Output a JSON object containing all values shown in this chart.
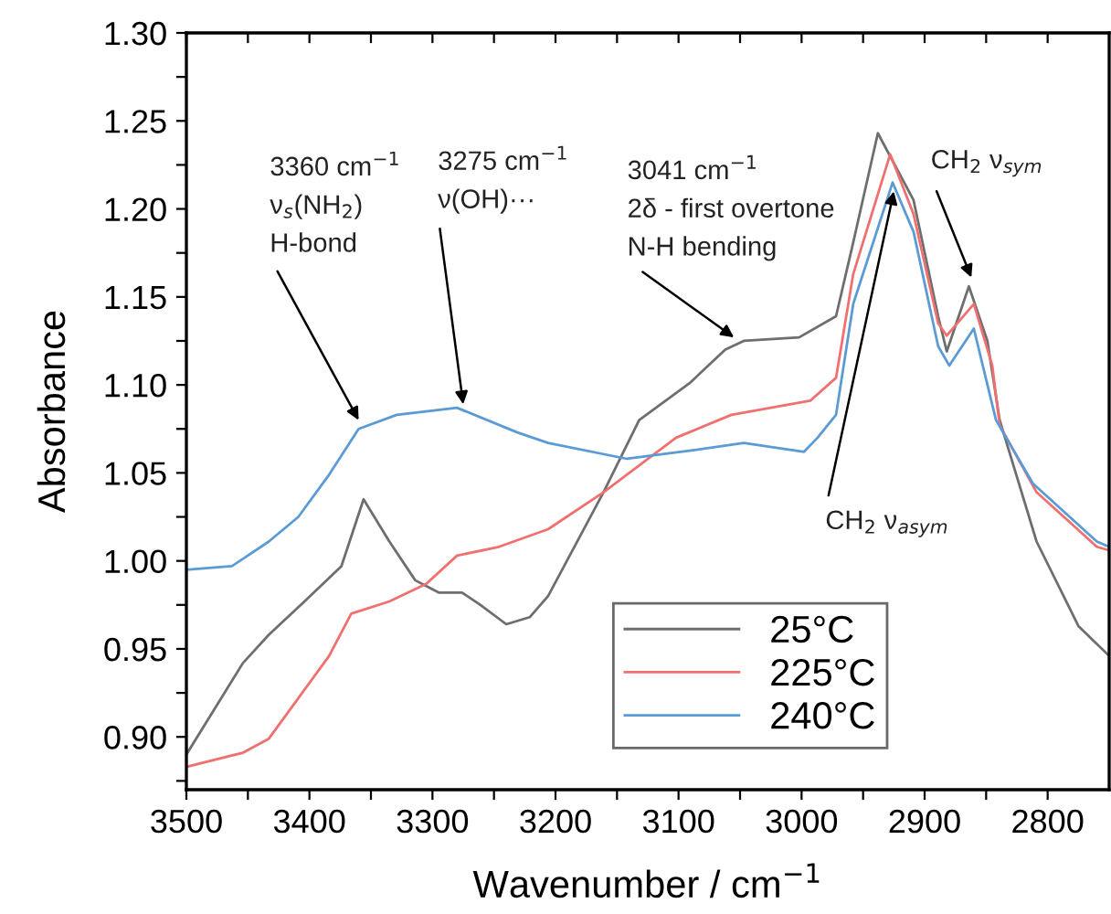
{
  "chart_data": {
    "type": "line",
    "xlabel": "Wavenumber / cm$^{−1}$",
    "ylabel": "Absorbance",
    "xlim": [
      3500,
      2750
    ],
    "ylim": [
      0.87,
      1.3
    ],
    "xticks": [
      3500,
      {
        "value": 3450,
        "label": null
      },
      3400,
      {
        "value": 3350,
        "label": null
      },
      3300,
      {
        "value": 3250,
        "label": null
      },
      3200,
      {
        "value": 3150,
        "label": null
      },
      3100,
      {
        "value": 3050,
        "label": null
      },
      3000,
      {
        "value": 2950,
        "label": null
      },
      2900,
      {
        "value": 2850,
        "label": null
      },
      2800
    ],
    "yticks": [
      {
        "value": 0.875,
        "label": null
      },
      {
        "value": 0.9,
        "label": "0.90"
      },
      {
        "value": 0.925,
        "label": null
      },
      0.95,
      {
        "value": 0.975,
        "label": null
      },
      {
        "value": 1.0,
        "label": "1.00"
      },
      {
        "value": 1.025,
        "label": null
      },
      1.05,
      {
        "value": 1.075,
        "label": null
      },
      {
        "value": 1.1,
        "label": "1.10"
      },
      {
        "value": 1.125,
        "label": null
      },
      1.15,
      {
        "value": 1.175,
        "label": null
      },
      {
        "value": 1.2,
        "label": "1.20"
      },
      {
        "value": 1.225,
        "label": null
      },
      1.25,
      {
        "value": 1.275,
        "label": null
      },
      {
        "value": 1.3,
        "label": "1.30"
      }
    ],
    "grid": false,
    "legend": "bottom right",
    "marker": "none",
    "line_style": "solid",
    "series": [
      {
        "name": "25°C",
        "color": "#6e6e6e",
        "x": [
          3500,
          3454,
          3433,
          3404,
          3374,
          3356,
          3335,
          3314,
          3295,
          3276,
          3261,
          3240,
          3221,
          3206,
          3161,
          3132,
          3091,
          3062,
          3047,
          3002,
          2972,
          2958,
          2938,
          2909,
          2889,
          2882,
          2864,
          2849,
          2839,
          2809,
          2775,
          2750
        ],
        "values": [
          0.89,
          0.942,
          0.958,
          0.977,
          0.997,
          1.035,
          1.011,
          0.989,
          0.982,
          0.982,
          0.975,
          0.964,
          0.968,
          0.98,
          1.039,
          1.08,
          1.101,
          1.12,
          1.125,
          1.127,
          1.139,
          1.181,
          1.243,
          1.205,
          1.139,
          1.119,
          1.156,
          1.125,
          1.08,
          1.011,
          0.963,
          0.946
        ]
      },
      {
        "name": "225°C",
        "color": "#f07070",
        "x": [
          3500,
          3454,
          3433,
          3409,
          3384,
          3366,
          3335,
          3305,
          3280,
          3246,
          3206,
          3161,
          3102,
          3057,
          2993,
          2972,
          2958,
          2928,
          2909,
          2889,
          2882,
          2860,
          2845,
          2839,
          2809,
          2760,
          2750
        ],
        "values": [
          0.883,
          0.891,
          0.899,
          0.922,
          0.946,
          0.97,
          0.977,
          0.987,
          1.003,
          1.008,
          1.018,
          1.039,
          1.07,
          1.083,
          1.091,
          1.104,
          1.163,
          1.231,
          1.197,
          1.135,
          1.128,
          1.146,
          1.111,
          1.077,
          1.039,
          1.008,
          1.006
        ]
      },
      {
        "name": "240°C",
        "color": "#5b9bd5",
        "x": [
          3500,
          3463,
          3433,
          3409,
          3384,
          3360,
          3329,
          3280,
          3231,
          3206,
          3142,
          3087,
          3047,
          2998,
          2987,
          2972,
          2958,
          2926,
          2909,
          2889,
          2880,
          2860,
          2842,
          2812,
          2760,
          2750
        ],
        "values": [
          0.995,
          0.997,
          1.011,
          1.025,
          1.049,
          1.075,
          1.083,
          1.087,
          1.073,
          1.067,
          1.058,
          1.063,
          1.067,
          1.062,
          1.07,
          1.083,
          1.146,
          1.215,
          1.187,
          1.122,
          1.111,
          1.132,
          1.08,
          1.044,
          1.011,
          1.008
        ]
      }
    ],
    "annotations": [
      "3360 cm$^{−1}$",
      "ν$_{s}$(NH$_{2}$)",
      {
        "text": "H-bond",
        "x": 3360,
        "y": 1.08
      },
      "3275 cm$^{−1}$",
      {
        "text": "ν(OH)···",
        "x": 3275,
        "y": 1.089
      },
      "3041 cm$^{−1}$",
      "2δ - first overtone",
      {
        "text": "N-H bending",
        "x": 3055,
        "y": 1.127
      },
      {
        "text": "CH$_{2}$ ν$_{sym}$",
        "x": 2862,
        "y": 1.161
      },
      {
        "text": "CH$_{2}$ ν$_{asym}$",
        "x": 2925,
        "y": 1.21
      }
    ]
  }
}
